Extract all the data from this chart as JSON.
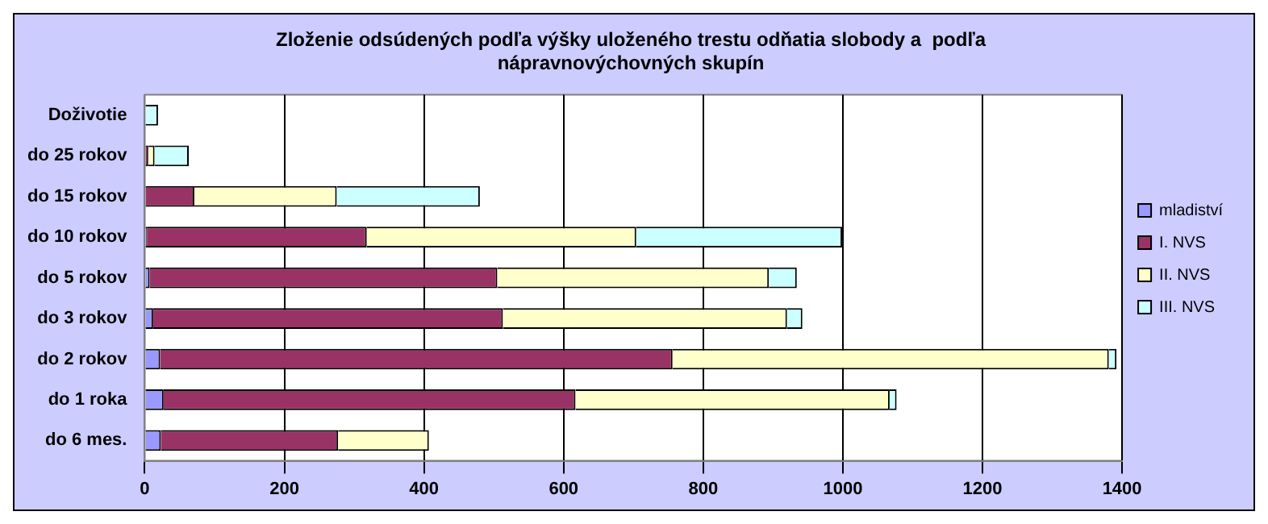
{
  "chart_data": {
    "type": "bar",
    "orientation": "horizontal",
    "stacked": true,
    "title": "Zloženie odsúdených podľa výšky uloženého trestu odňatia slobody a  podľa nápravnovýchovných skupín",
    "categories": [
      "Doživotie",
      "do 25 rokov",
      "do 15 rokov",
      "do 10 rokov",
      "do 5 rokov",
      "do 3 rokov",
      "do 2 rokov",
      "do 1 roka",
      "do 6 mes."
    ],
    "series": [
      {
        "name": "mladiství",
        "color": "#9999ff",
        "values": [
          0,
          0,
          0,
          3,
          7,
          12,
          22,
          27,
          23
        ]
      },
      {
        "name": "I. NVS",
        "color": "#993366",
        "values": [
          0,
          5,
          71,
          315,
          498,
          501,
          734,
          590,
          254
        ]
      },
      {
        "name": "II. NVS",
        "color": "#ffffcc",
        "values": [
          0,
          9,
          204,
          386,
          389,
          407,
          625,
          450,
          130
        ]
      },
      {
        "name": "III. NVS",
        "color": "#ccffff",
        "values": [
          19,
          49,
          205,
          295,
          40,
          22,
          11,
          10,
          null
        ]
      }
    ],
    "xlim": [
      0,
      1400
    ],
    "xticks": [
      0,
      200,
      400,
      600,
      800,
      1000,
      1200,
      1400
    ],
    "grid": "x",
    "legend": "right"
  }
}
